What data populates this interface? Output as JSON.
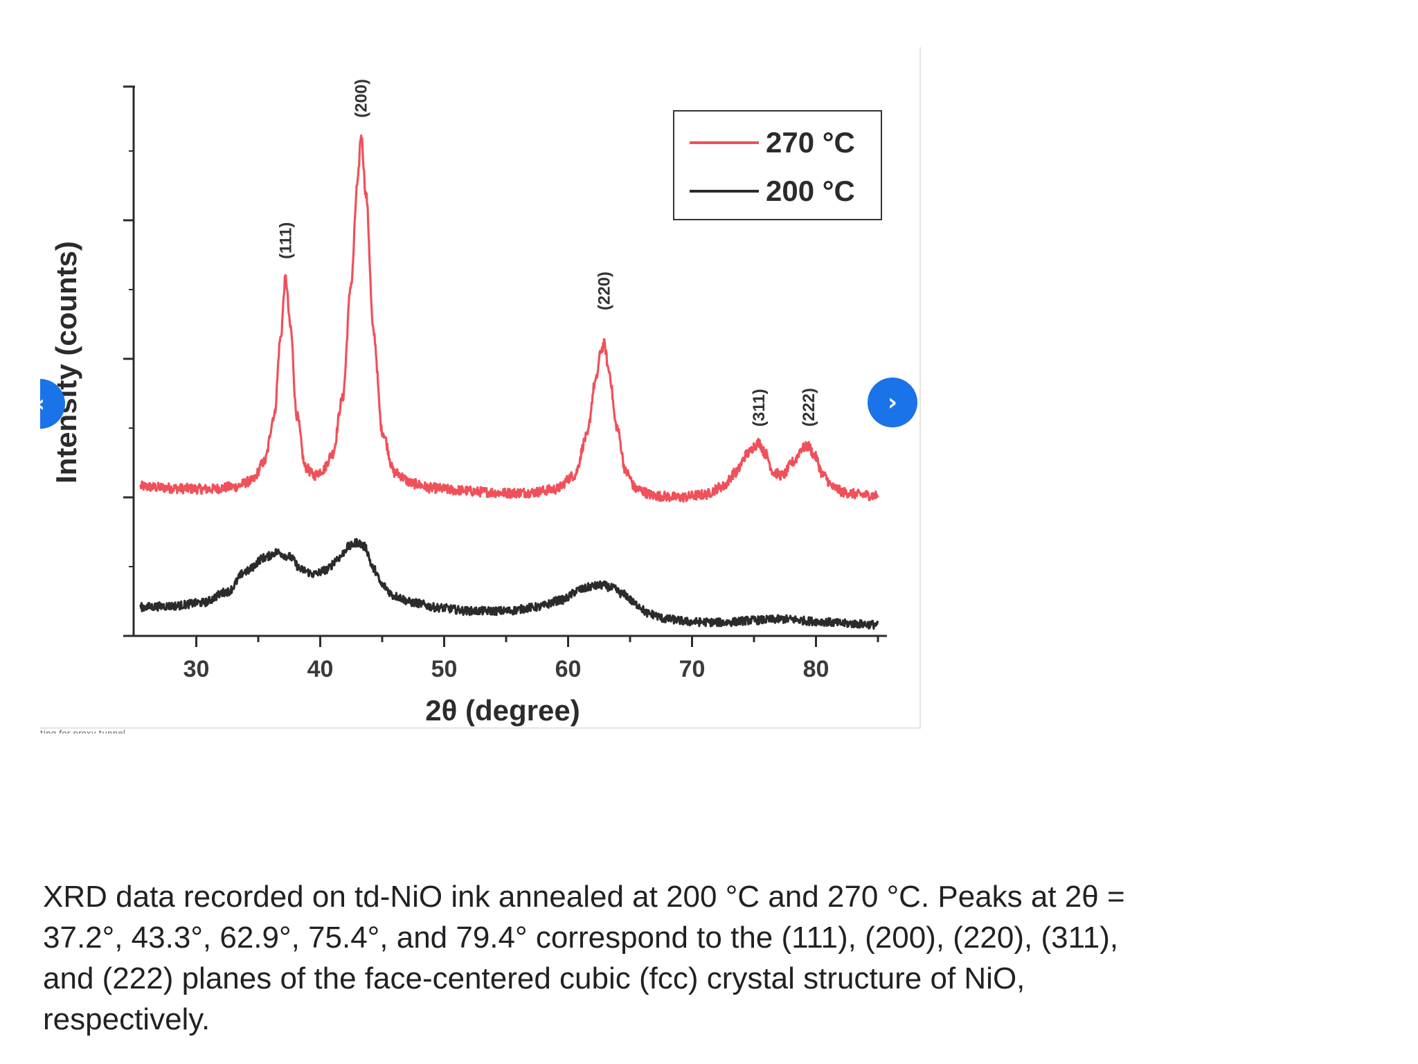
{
  "chart_data": {
    "type": "line",
    "title": "",
    "xlabel": "2θ (degree)",
    "ylabel": "Intensity (counts)",
    "xlim": [
      25,
      85
    ],
    "ylim": [
      0,
      100
    ],
    "xticks": [
      30,
      40,
      50,
      60,
      70,
      80
    ],
    "y_ticks_labeled": false,
    "series": [
      {
        "name": "270 °C",
        "color": "#f0505a",
        "x": [
          25.5,
          27,
          29,
          31,
          33,
          34.5,
          35.5,
          36.3,
          36.8,
          37.2,
          37.6,
          38.1,
          38.8,
          39.5,
          40.2,
          41,
          41.8,
          42.5,
          43.0,
          43.3,
          43.7,
          44.3,
          45,
          46,
          47.5,
          49,
          51,
          53,
          55,
          57,
          59,
          60.5,
          61.5,
          62.2,
          62.7,
          62.9,
          63.3,
          63.9,
          64.7,
          65.5,
          67,
          69,
          71,
          72.5,
          73.5,
          74.5,
          75.1,
          75.4,
          75.9,
          76.6,
          77.3,
          78.2,
          78.9,
          79.4,
          79.9,
          80.6,
          81.4,
          82.3,
          83.5,
          85
        ],
        "y": [
          27.0,
          26.8,
          26.6,
          26.5,
          26.9,
          28.0,
          31.5,
          40.0,
          54.0,
          65.0,
          56.0,
          40.0,
          30.5,
          29.0,
          30.0,
          33.0,
          43.0,
          64.0,
          82.0,
          91.0,
          80.0,
          55.0,
          37.0,
          29.5,
          27.5,
          26.7,
          26.3,
          26.0,
          25.8,
          25.9,
          26.5,
          29.0,
          36.0,
          46.0,
          52.0,
          53.0,
          48.0,
          38.0,
          29.5,
          26.5,
          25.3,
          25.0,
          25.5,
          27.0,
          29.5,
          33.0,
          34.5,
          35.0,
          33.0,
          29.5,
          29.0,
          31.5,
          34.0,
          34.3,
          32.5,
          29.0,
          26.8,
          25.9,
          25.5,
          25.3
        ],
        "peak_labels": [
          "(111)",
          "(200)",
          "(220)",
          "(311)",
          "(222)"
        ]
      },
      {
        "name": "200 °C",
        "color": "#2b2b2b",
        "x": [
          25.5,
          28,
          30.5,
          32.5,
          34,
          35.5,
          36.5,
          37.5,
          38.5,
          39.5,
          40.5,
          41.5,
          42.3,
          43.0,
          43.6,
          44.3,
          45,
          46,
          47.5,
          49.5,
          52,
          55,
          57.5,
          59.5,
          61,
          62,
          62.8,
          63.5,
          64.5,
          65.5,
          66.5,
          68,
          70,
          72.5,
          75,
          77.5,
          80,
          82.5,
          85
        ],
        "y": [
          5.0,
          5.2,
          5.8,
          7.8,
          11.5,
          14.0,
          15.0,
          14.2,
          11.8,
          11.0,
          11.8,
          14.0,
          16.0,
          16.8,
          16.0,
          12.0,
          9.0,
          7.0,
          5.8,
          4.9,
          4.3,
          4.3,
          5.0,
          6.3,
          8.2,
          8.8,
          9.0,
          8.5,
          7.3,
          5.5,
          3.8,
          2.8,
          2.3,
          2.2,
          2.6,
          2.8,
          2.4,
          2.0,
          1.8
        ]
      }
    ],
    "legend": {
      "position": "top-right",
      "entries": [
        "270 °C",
        "200 °C"
      ]
    }
  },
  "peak_annotations": [
    {
      "label": "(111)",
      "x": 37.2
    },
    {
      "label": "(200)",
      "x": 43.3
    },
    {
      "label": "(220)",
      "x": 62.9
    },
    {
      "label": "(311)",
      "x": 75.4
    },
    {
      "label": "(222)",
      "x": 79.4
    }
  ],
  "nav": {
    "prev_glyph": "‹",
    "next_glyph": "›"
  },
  "status_text": "ting for proxy tunnel",
  "caption": "XRD data recorded on td-NiO ink annealed at 200 °C and 270 °C. Peaks at 2θ = 37.2°, 43.3°, 62.9°, 75.4°, and 79.4° correspond to the (111), (200), (220), (311), and (222) planes of the face-centered cubic (fcc) crystal structure of NiO, respectively.",
  "colors": {
    "accent": "#1a73e8",
    "series_270": "#f0505a",
    "series_200": "#2b2b2b",
    "axis": "#2b2b2b"
  }
}
